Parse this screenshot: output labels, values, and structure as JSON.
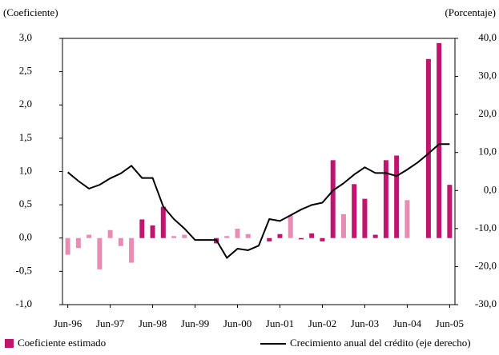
{
  "chart_data": {
    "type": "combo",
    "y_axis_title": "(Coeficiente)",
    "y2_axis_title": "(Porcentaje)",
    "categories": [
      "Jun-96",
      null,
      null,
      null,
      "Jun-97",
      null,
      null,
      null,
      "Jun-98",
      null,
      null,
      null,
      "Jun-99",
      null,
      null,
      null,
      "Jun-00",
      null,
      null,
      null,
      "Jun-01",
      null,
      null,
      null,
      "Jun-02",
      null,
      null,
      null,
      "Jun-03",
      null,
      null,
      null,
      "Jun-04",
      null,
      null,
      null,
      "Jun-05"
    ],
    "ylim": [
      -1.0,
      3.0
    ],
    "yticks": [
      {
        "value": -1.0,
        "label": "-1,0"
      },
      {
        "value": -0.5,
        "label": "-0,5"
      },
      {
        "value": 0.0,
        "label": "0,0"
      },
      {
        "value": 0.5,
        "label": "0,5"
      },
      {
        "value": 1.0,
        "label": "1,0"
      },
      {
        "value": 1.5,
        "label": "1,5"
      },
      {
        "value": 2.0,
        "label": "2,0"
      },
      {
        "value": 2.5,
        "label": "2,5"
      },
      {
        "value": 3.0,
        "label": "3,0"
      }
    ],
    "y2lim": [
      -30,
      40
    ],
    "y2ticks": [
      {
        "value": -30,
        "label": "-30,0"
      },
      {
        "value": -20,
        "label": "-20,0"
      },
      {
        "value": -10,
        "label": "-10,0"
      },
      {
        "value": 0,
        "label": "0,0"
      },
      {
        "value": 10,
        "label": "10,0"
      },
      {
        "value": 20,
        "label": "20,0"
      },
      {
        "value": 30,
        "label": "30,0"
      },
      {
        "value": 40,
        "label": "40,0"
      }
    ],
    "series": [
      {
        "name": "Coeficiente estimado",
        "type": "bar",
        "color": "#c0146e",
        "bar_colors": [
          "#e88cb4",
          "#e88cb4",
          "#e88cb4",
          "#e88cb4",
          "#e88cb4",
          "#e88cb4",
          "#e88cb4",
          "#c0146e",
          "#c0146e",
          "#c0146e",
          "#e88cb4",
          "#e88cb4",
          "#c0146e",
          "#c0146e",
          "#c0146e",
          "#e88cb4",
          "#e88cb4",
          "#e88cb4",
          "#c0146e",
          "#c0146e",
          "#c0146e",
          "#e88cb4",
          "#c0146e",
          "#c0146e",
          "#c0146e",
          "#c0146e",
          "#e88cb4",
          "#c0146e",
          "#c0146e",
          "#c0146e",
          "#c0146e",
          "#c0146e",
          "#e88cb4",
          "#c0146e",
          "#c0146e",
          "#c0146e",
          "#c0146e"
        ],
        "values": [
          -0.25,
          -0.15,
          0.05,
          -0.47,
          0.12,
          -0.12,
          -0.37,
          0.28,
          0.19,
          0.47,
          0.03,
          0.05,
          0.0,
          0.0,
          -0.08,
          0.03,
          0.14,
          0.06,
          0.0,
          -0.05,
          0.06,
          0.34,
          -0.02,
          0.07,
          -0.05,
          1.17,
          0.36,
          0.81,
          0.59,
          0.05,
          1.17,
          1.24,
          0.57,
          0.0,
          2.69,
          2.93,
          0.8
        ]
      },
      {
        "name": "Crecimiento anual del crédito (eje derecho)",
        "type": "line",
        "axis": "y2",
        "color": "#000000",
        "values": [
          4.8,
          2.5,
          0.5,
          1.5,
          3.2,
          4.5,
          6.5,
          3.3,
          3.3,
          -4.2,
          -7.5,
          -10,
          -13,
          -13,
          -13,
          -17.7,
          -15.3,
          -15.7,
          -14.5,
          -7.5,
          -8,
          -6.5,
          -5,
          -3.8,
          -3.2,
          0,
          1.9,
          4.2,
          6.1,
          4.6,
          4.6,
          3.8,
          5.5,
          7.4,
          9.7,
          12.2,
          12.2
        ]
      }
    ]
  }
}
